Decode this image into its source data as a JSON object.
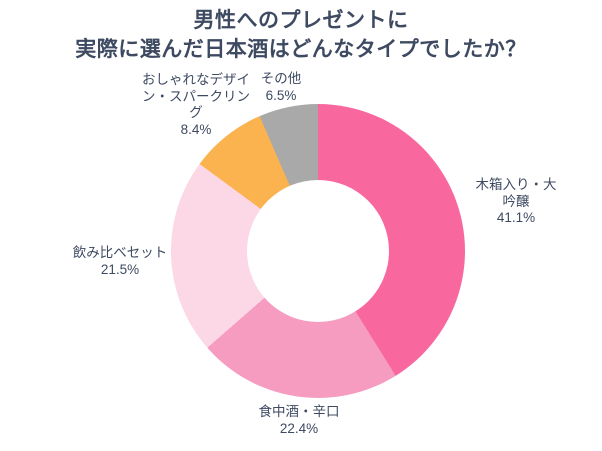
{
  "title": "男性へのプレゼントに\n実際に選んだ日本酒はどんなタイプでしたか？",
  "text_color": "#3E4A61",
  "chart_data": {
    "type": "pie",
    "style": "donut",
    "title": "男性へのプレゼントに 実際に選んだ日本酒はどんなタイプでしたか？",
    "categories": [
      "木箱入り・大吟醸",
      "食中酒・辛口",
      "飲み比べセット",
      "おしゃれなデザイン・スパークリング",
      "その他"
    ],
    "values": [
      41.1,
      22.4,
      21.5,
      8.4,
      6.5
    ],
    "unit": "%",
    "colors": [
      "#F8689F",
      "#F59CC0",
      "#FCD7E5",
      "#FBB350",
      "#A9A9A9"
    ],
    "start_angle_deg": 0,
    "direction": "clockwise",
    "legend": "none",
    "data_labels": "outside"
  },
  "labels": [
    {
      "text": "木箱入り・大吟醸\n41.1%"
    },
    {
      "text": "食中酒・辛口\n22.4%"
    },
    {
      "text": "飲み比べセット\n21.5%"
    },
    {
      "text": "おしゃれなデザイ\nン・スパークリン\nグ\n8.4%"
    },
    {
      "text": "その他\n6.5%"
    }
  ]
}
